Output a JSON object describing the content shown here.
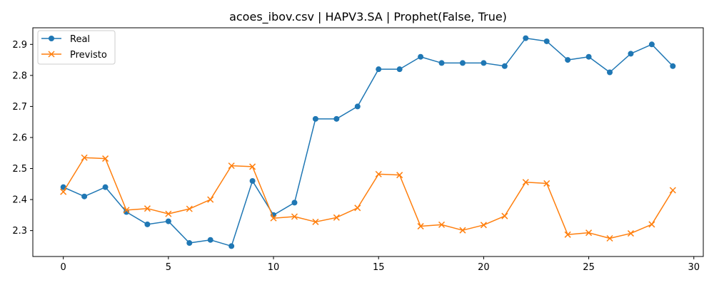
{
  "chart_data": {
    "type": "line",
    "title": "acoes_ibov.csv | HAPV3.SA | Prophet(False, True)",
    "xlabel": "",
    "ylabel": "",
    "x": [
      0,
      1,
      2,
      3,
      4,
      5,
      6,
      7,
      8,
      9,
      10,
      11,
      12,
      13,
      14,
      15,
      16,
      17,
      18,
      19,
      20,
      21,
      22,
      23,
      24,
      25,
      26,
      27,
      28,
      29
    ],
    "xlim": [
      -1.45,
      30.45
    ],
    "ylim": [
      2.2165,
      2.9535
    ],
    "xticks": [
      0,
      5,
      10,
      15,
      20,
      25,
      30
    ],
    "yticks": [
      2.3,
      2.4,
      2.5,
      2.6,
      2.7,
      2.8,
      2.9
    ],
    "xtick_labels": [
      "0",
      "5",
      "10",
      "15",
      "20",
      "25",
      "30"
    ],
    "ytick_labels": [
      "2.3",
      "2.4",
      "2.5",
      "2.6",
      "2.7",
      "2.8",
      "2.9"
    ],
    "grid": false,
    "legend_position": "top-left",
    "series": [
      {
        "name": "Real",
        "color": "#1f77b4",
        "marker": "circle",
        "values": [
          2.44,
          2.41,
          2.44,
          2.36,
          2.32,
          2.33,
          2.26,
          2.27,
          2.25,
          2.46,
          2.35,
          2.39,
          2.66,
          2.66,
          2.7,
          2.82,
          2.82,
          2.86,
          2.84,
          2.84,
          2.84,
          2.83,
          2.92,
          2.91,
          2.85,
          2.86,
          2.81,
          2.87,
          2.9,
          2.83
        ]
      },
      {
        "name": "Previsto",
        "color": "#ff7f0e",
        "marker": "x",
        "values": [
          2.425,
          2.535,
          2.532,
          2.366,
          2.371,
          2.354,
          2.37,
          2.4,
          2.509,
          2.506,
          2.34,
          2.345,
          2.328,
          2.342,
          2.373,
          2.482,
          2.479,
          2.314,
          2.319,
          2.301,
          2.318,
          2.347,
          2.456,
          2.452,
          2.287,
          2.293,
          2.275,
          2.291,
          2.32,
          2.43
        ]
      }
    ]
  }
}
